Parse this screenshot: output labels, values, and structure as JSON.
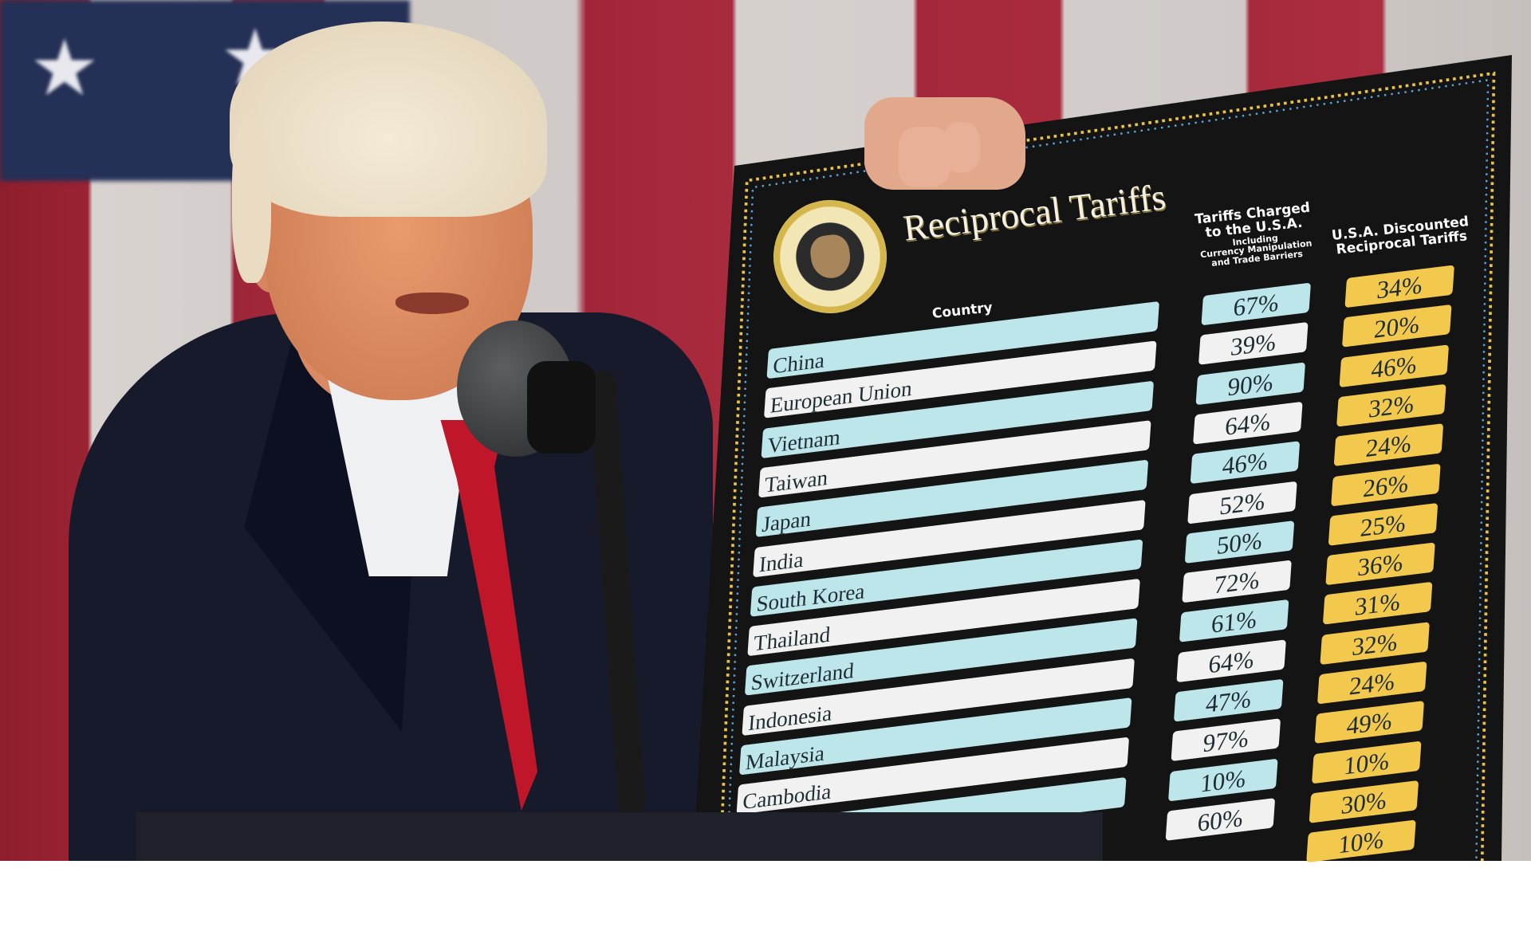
{
  "board": {
    "title": "Reciprocal Tariffs",
    "country_header": "Country",
    "charged_header": [
      "Tariffs Charged",
      "to the U.S.A.",
      "Including",
      "Currency Manipulation",
      "and Trade Barriers"
    ],
    "reciprocal_header": [
      "U.S.A. Discounted",
      "Reciprocal Tariffs"
    ],
    "rows": [
      {
        "country": "China",
        "charged": "67%",
        "reciprocal": "34%"
      },
      {
        "country": "European Union",
        "charged": "39%",
        "reciprocal": "20%"
      },
      {
        "country": "Vietnam",
        "charged": "90%",
        "reciprocal": "46%"
      },
      {
        "country": "Taiwan",
        "charged": "64%",
        "reciprocal": "32%"
      },
      {
        "country": "Japan",
        "charged": "46%",
        "reciprocal": "24%"
      },
      {
        "country": "India",
        "charged": "52%",
        "reciprocal": "26%"
      },
      {
        "country": "South Korea",
        "charged": "50%",
        "reciprocal": "25%"
      },
      {
        "country": "Thailand",
        "charged": "72%",
        "reciprocal": "36%"
      },
      {
        "country": "Switzerland",
        "charged": "61%",
        "reciprocal": "31%"
      },
      {
        "country": "Indonesia",
        "charged": "64%",
        "reciprocal": "32%"
      },
      {
        "country": "Malaysia",
        "charged": "47%",
        "reciprocal": "24%"
      },
      {
        "country": "Cambodia",
        "charged": "97%",
        "reciprocal": "49%"
      },
      {
        "country": "",
        "charged": "10%",
        "reciprocal": "10%"
      },
      {
        "country": "",
        "charged": "60%",
        "reciprocal": "30%"
      },
      {
        "country": "",
        "charged": "",
        "reciprocal": "10%"
      }
    ],
    "colors": {
      "board": "#141414",
      "row_blue": "#bde6ea",
      "row_white": "#f1f1f1",
      "reciprocal_yellow": "#f2c94c",
      "border_dots": "#e8c34a"
    }
  },
  "icons": {
    "seal": "presidential-seal-icon"
  }
}
